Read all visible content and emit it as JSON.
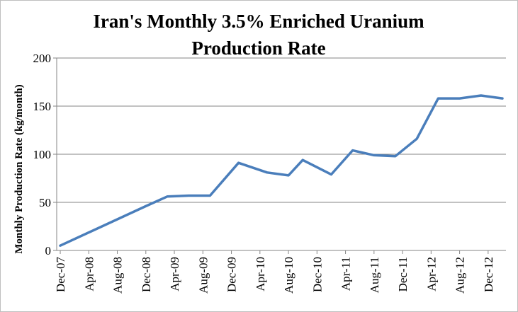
{
  "chart_data": {
    "type": "line",
    "title_lines": [
      "Iran's Monthly 3.5% Enriched Uranium",
      "Production Rate"
    ],
    "xlabel": "",
    "ylabel": "Monthly Production Rate (kg/month)",
    "ylim": [
      0,
      200
    ],
    "yticks": [
      0,
      50,
      100,
      150,
      200
    ],
    "xtick_labels": [
      "Dec-07",
      "Apr-08",
      "Aug-08",
      "Dec-08",
      "Apr-09",
      "Aug-09",
      "Dec-09",
      "Apr-10",
      "Aug-10",
      "Dec-10",
      "Apr-11",
      "Aug-11",
      "Dec-11",
      "Apr-12",
      "Aug-12",
      "Dec-12"
    ],
    "grid": true,
    "legend": "none",
    "series": [
      {
        "color": "#4a7ebb",
        "points": [
          {
            "x": "Dec-07",
            "y": 5
          },
          {
            "x": "Dec-08",
            "y": 46
          },
          {
            "x": "Mar-09",
            "y": 56
          },
          {
            "x": "Jun-09",
            "y": 57
          },
          {
            "x": "Sep-09",
            "y": 57
          },
          {
            "x": "Jan-10",
            "y": 91
          },
          {
            "x": "May-10",
            "y": 81
          },
          {
            "x": "Aug-10",
            "y": 78
          },
          {
            "x": "Oct-10",
            "y": 94
          },
          {
            "x": "Feb-11",
            "y": 79
          },
          {
            "x": "May-11",
            "y": 104
          },
          {
            "x": "Aug-11",
            "y": 99
          },
          {
            "x": "Nov-11",
            "y": 98
          },
          {
            "x": "Feb-12",
            "y": 116
          },
          {
            "x": "May-12",
            "y": 158
          },
          {
            "x": "Aug-12",
            "y": 158
          },
          {
            "x": "Nov-12",
            "y": 161
          },
          {
            "x": "Feb-13",
            "y": 158
          }
        ]
      }
    ]
  }
}
